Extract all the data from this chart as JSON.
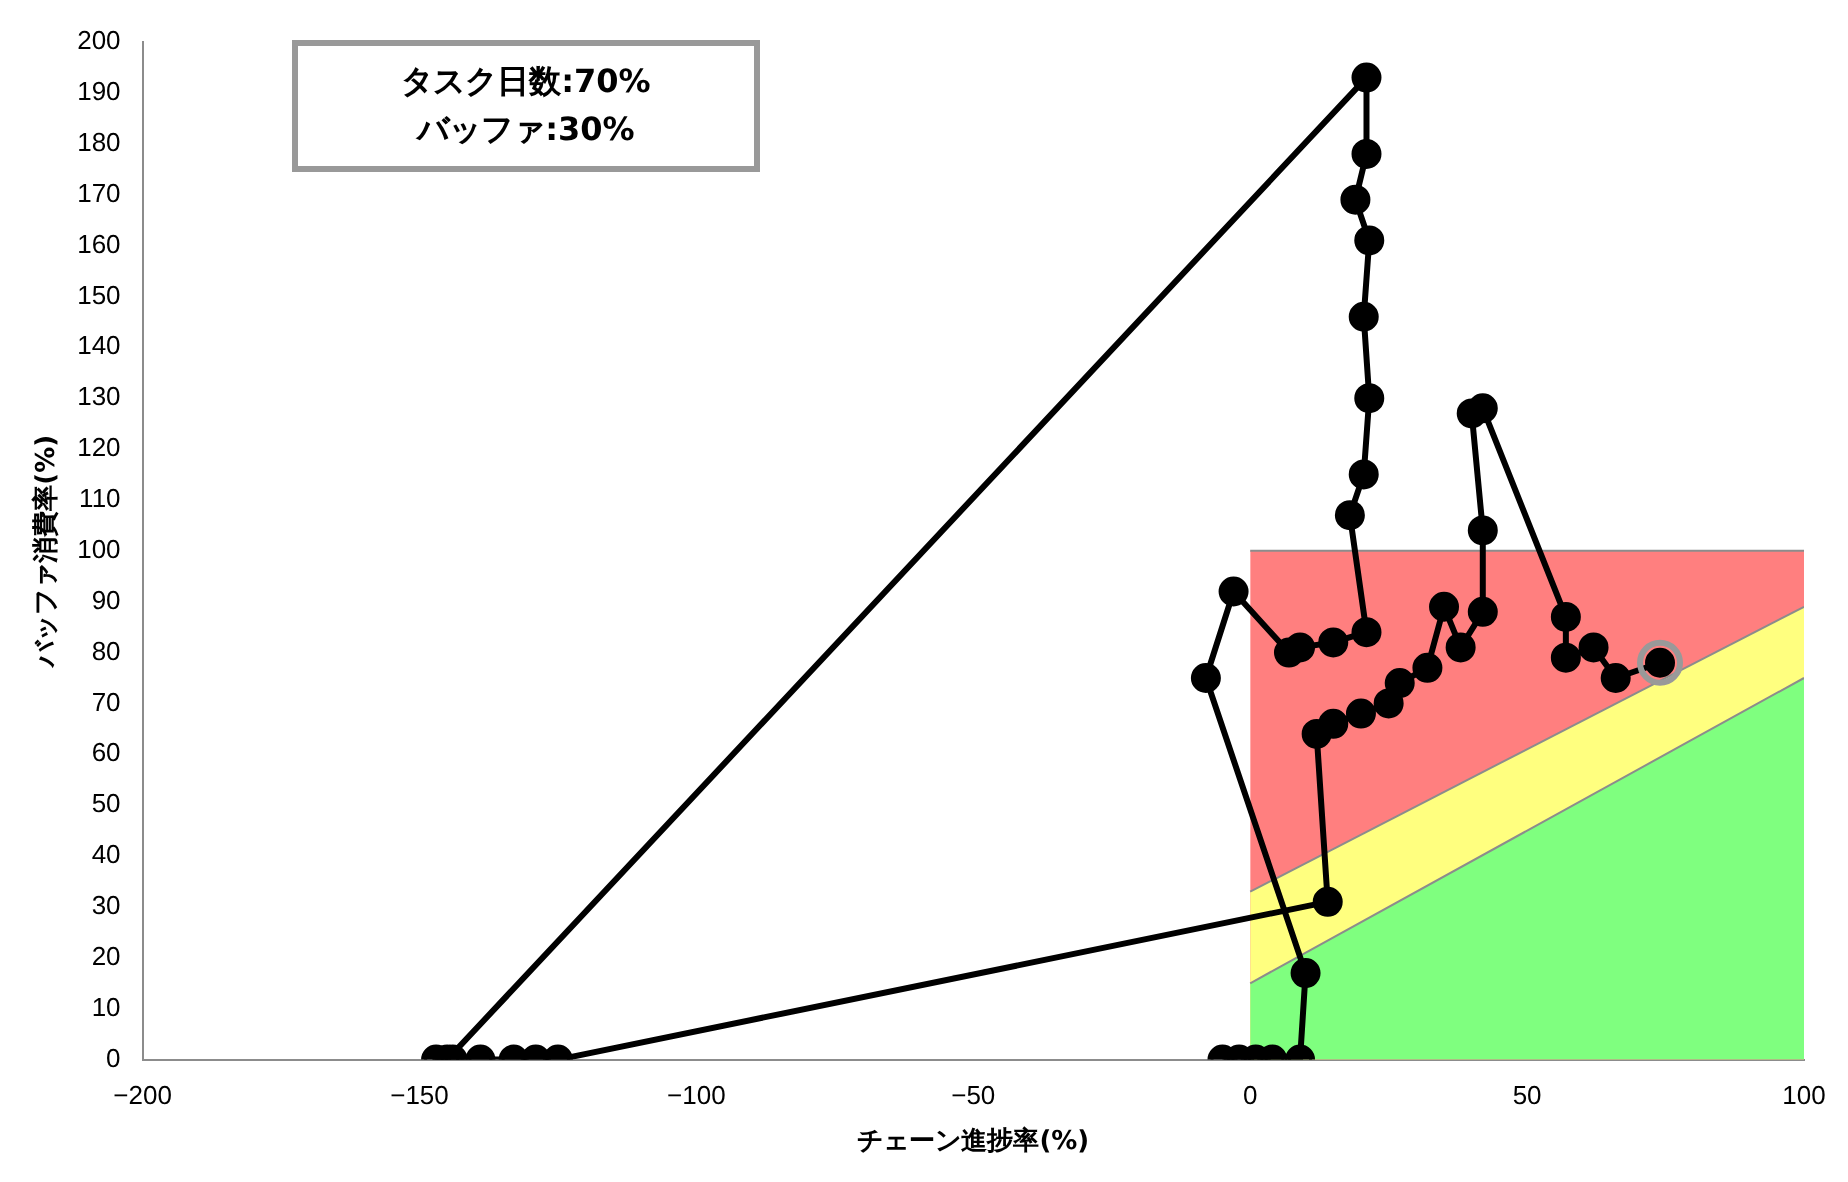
{
  "chart_data": {
    "type": "line",
    "xlabel": "チェーン進捗率(%)",
    "ylabel": "バッファ消費率(%)",
    "annotations": [
      "タスク日数:70%",
      "バッファ:30%"
    ],
    "xlim": [
      -200,
      100
    ],
    "xticks": [
      -200,
      -150,
      -100,
      -50,
      0,
      50,
      100
    ],
    "ylim": [
      0,
      200
    ],
    "yticks": [
      0,
      10,
      20,
      30,
      40,
      50,
      60,
      70,
      80,
      90,
      100,
      110,
      120,
      130,
      140,
      150,
      160,
      170,
      180,
      190,
      200
    ],
    "grid": false,
    "legend": false,
    "series": [
      {
        "type": "area",
        "color": "#ff7f7f",
        "x": [
          0,
          100
        ],
        "values": [
          100,
          100
        ]
      },
      {
        "type": "area",
        "color": "#ffff7f",
        "x": [
          0,
          100
        ],
        "values": [
          33,
          89
        ]
      },
      {
        "type": "area",
        "color": "#7fff7f",
        "x": [
          0,
          100
        ],
        "values": [
          15,
          75
        ]
      },
      {
        "type": "line",
        "color": "#000000",
        "marker": "circle",
        "line_style": "solid",
        "x": [
          -5,
          -2,
          1,
          4,
          9,
          10,
          -8,
          -3,
          7,
          9,
          15,
          21,
          18,
          20.5,
          21.5,
          20.5,
          21.5,
          19,
          21,
          21,
          -145,
          -147,
          -144,
          -139,
          -133,
          -129,
          -125,
          14,
          12,
          15,
          20,
          25,
          27,
          32,
          35,
          38,
          42,
          42,
          40,
          42,
          57,
          57,
          62,
          66,
          74
        ],
        "values": [
          0,
          0,
          0,
          0,
          0,
          17,
          75,
          92,
          80,
          81,
          82,
          84,
          107,
          115,
          130,
          146,
          161,
          169,
          178,
          193,
          0,
          0,
          0,
          0,
          0,
          0,
          0,
          31,
          64,
          66,
          68,
          70,
          74,
          77,
          89,
          81,
          88,
          104,
          127,
          128,
          87,
          79,
          81,
          75,
          78
        ]
      },
      {
        "type": "scatter",
        "color": "#999999",
        "marker": "circle",
        "x": [
          74
        ],
        "values": [
          78
        ]
      }
    ]
  }
}
